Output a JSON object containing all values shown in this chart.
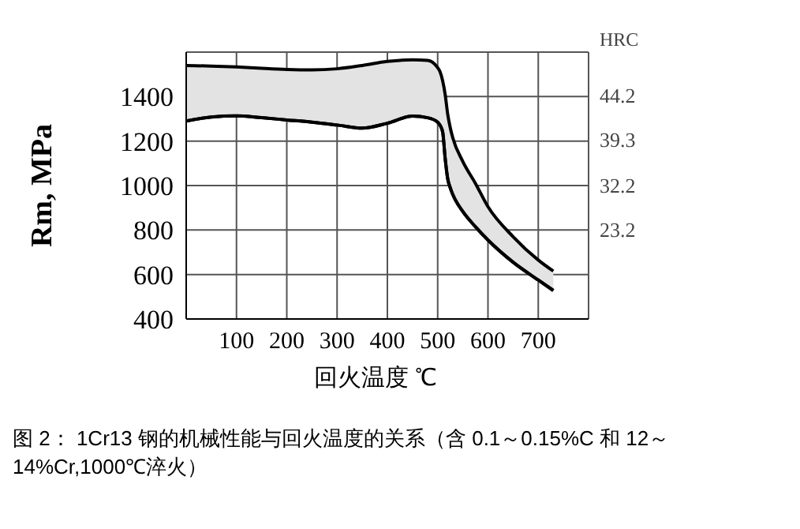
{
  "chart_data": {
    "type": "line",
    "xlabel": "回火温度 ℃",
    "ylabel": "Rm, MPa",
    "y2label": "HRC",
    "annotations": [
      "44.2",
      "39.3",
      "32.2",
      "23.2",
      "图 2： 1Cr13 钢的机械性能与回火温度的关系（含 0.1～0.15%C 和 12～14%Cr,1000℃淬火）"
    ],
    "x": [
      0,
      50,
      100,
      150,
      200,
      250,
      300,
      350,
      400,
      450,
      480,
      500,
      505,
      510,
      515,
      520,
      525,
      530,
      550,
      575,
      600,
      650,
      700,
      730
    ],
    "series": [
      {
        "type": "area",
        "color": "#000000",
        "values": [
          1540,
          1537,
          1533,
          1527,
          1522,
          1520,
          1525,
          1540,
          1558,
          1565,
          1563,
          1530,
          1510,
          1470,
          1408,
          1320,
          1260,
          1215,
          1108,
          1010,
          905,
          770,
          665,
          615
        ]
      },
      {
        "color": "#000000",
        "values": [
          1290,
          1308,
          1313,
          1305,
          1295,
          1285,
          1272,
          1258,
          1280,
          1312,
          1305,
          1285,
          1270,
          1240,
          1120,
          1030,
          990,
          960,
          883,
          815,
          755,
          655,
          575,
          528
        ]
      }
    ],
    "xlim": [
      0,
      800
    ],
    "xticks": [
      100,
      200,
      300,
      400,
      500,
      600,
      700
    ],
    "ylim": [
      400,
      1600
    ],
    "yticks": [
      400,
      600,
      800,
      1000,
      1200,
      1400
    ],
    "grid": true
  }
}
